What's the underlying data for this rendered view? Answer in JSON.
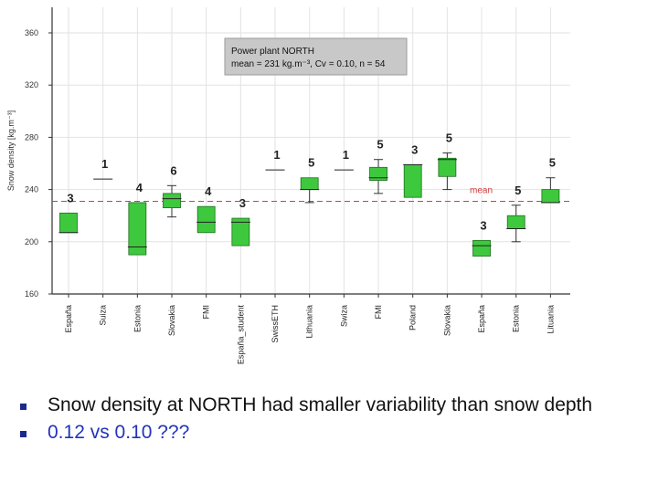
{
  "colors": {
    "box_fill": "#3ec83e",
    "box_stroke": "#1e6e1e",
    "mean_line": "#d04040",
    "grid": "#e2e2e2",
    "axis": "#333333",
    "legend_bg": "#c8c8c8",
    "bullet": "#1a2a8c",
    "highlight_text": "#2233bb"
  },
  "chart_data": {
    "type": "box",
    "ylabel": "Snow density [kg.m⁻³]",
    "ylim": [
      160,
      370
    ],
    "yticks": [
      160,
      200,
      240,
      280,
      320,
      360
    ],
    "grid": true,
    "mean_value": 231,
    "mean_label": "mean",
    "legend": {
      "title": "Power plant NORTH",
      "stats": "mean = 231 kg.m⁻³, Cv = 0.10, n = 54"
    },
    "categories": [
      "España",
      "Suiza",
      "Estonia",
      "Slovakia",
      "FMI",
      "España_student",
      "SwissETH",
      "Lithuania",
      "Swiza",
      "FMI",
      "Poland",
      "Slovakia",
      "España",
      "Estonia",
      "Lituania"
    ],
    "boxes": [
      {
        "n": "3",
        "q1": 207,
        "median": 207,
        "q3": 222,
        "min": 207,
        "max": 222
      },
      {
        "n": "1",
        "q1": 248,
        "median": 248,
        "q3": 248,
        "min": 248,
        "max": 248
      },
      {
        "n": "4",
        "q1": 190,
        "median": 196,
        "q3": 230,
        "min": 190,
        "max": 230
      },
      {
        "n": "6",
        "q1": 226,
        "median": 233,
        "q3": 237,
        "min": 219,
        "max": 243
      },
      {
        "n": "4",
        "q1": 207,
        "median": 215,
        "q3": 227,
        "min": 207,
        "max": 227
      },
      {
        "n": "3",
        "q1": 197,
        "median": 215,
        "q3": 218,
        "min": 197,
        "max": 218
      },
      {
        "n": "1",
        "q1": 255,
        "median": 255,
        "q3": 255,
        "min": 255,
        "max": 255
      },
      {
        "n": "5",
        "q1": 240,
        "median": 240,
        "q3": 249,
        "min": 230,
        "max": 249
      },
      {
        "n": "1",
        "q1": 255,
        "median": 255,
        "q3": 255,
        "min": 255,
        "max": 255
      },
      {
        "n": "5",
        "q1": 247,
        "median": 249,
        "q3": 257,
        "min": 237,
        "max": 263
      },
      {
        "n": "3",
        "q1": 234,
        "median": 259,
        "q3": 259,
        "min": 234,
        "max": 259
      },
      {
        "n": "5",
        "q1": 250,
        "median": 263,
        "q3": 264,
        "min": 240,
        "max": 268
      },
      {
        "n": "3",
        "q1": 189,
        "median": 197,
        "q3": 201,
        "min": 189,
        "max": 201
      },
      {
        "n": "5",
        "q1": 210,
        "median": 210,
        "q3": 220,
        "min": 200,
        "max": 228
      },
      {
        "n": "5",
        "q1": 230,
        "median": 230,
        "q3": 240,
        "min": 230,
        "max": 249
      }
    ]
  },
  "bullets": [
    "Snow density at NORTH had smaller variability than snow depth",
    "0.12 vs 0.10 ???"
  ]
}
